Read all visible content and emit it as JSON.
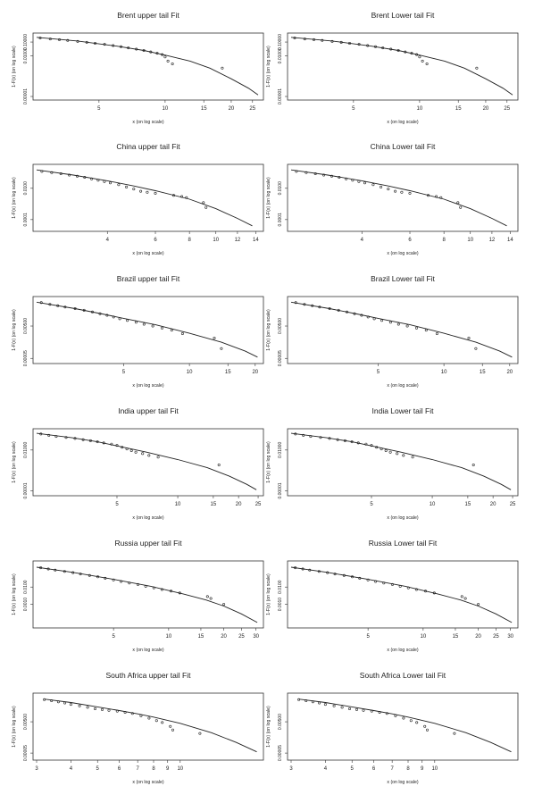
{
  "chart_data": [
    {
      "type": "scatter",
      "title": "Brent upper tail Fit",
      "xlabel": "x (on log scale)",
      "ylabel": "1-F(x) (on log scale)",
      "x_log": true,
      "y_log": true,
      "xlim": [
        2.6,
        27
      ],
      "ylim": [
        1e-05,
        0.25
      ],
      "xticks": [
        5,
        10,
        15,
        20,
        25
      ],
      "yticks": [
        0.1,
        0.01,
        1e-05
      ],
      "ytick_labels": [
        "0.10000",
        "0.01000",
        "0.00001"
      ],
      "points_x": [
        2.7,
        3.0,
        3.3,
        3.6,
        4.0,
        4.4,
        4.8,
        5.3,
        5.8,
        6.3,
        6.8,
        7.4,
        8.0,
        8.6,
        9.2,
        9.7,
        10.0,
        10.3,
        10.8,
        18.2
      ],
      "points_y": [
        0.2,
        0.17,
        0.15,
        0.13,
        0.11,
        0.095,
        0.08,
        0.068,
        0.055,
        0.045,
        0.037,
        0.03,
        0.024,
        0.019,
        0.015,
        0.012,
        0.008,
        0.004,
        0.0025,
        0.0012
      ],
      "curve_x": [
        2.6,
        4,
        6,
        8,
        10,
        13,
        16,
        20,
        24,
        26.5
      ],
      "curve_y": [
        0.22,
        0.12,
        0.05,
        0.024,
        0.011,
        0.004,
        0.0012,
        0.0002,
        4e-05,
        1.3e-05
      ]
    },
    {
      "type": "scatter",
      "title": "Brent Lower tail Fit",
      "xlabel": "x (on log scale)",
      "ylabel": "1-F(x) (on log scale)",
      "x_log": true,
      "y_log": true,
      "xlim": [
        2.6,
        27
      ],
      "ylim": [
        1e-05,
        0.25
      ],
      "xticks": [
        5,
        10,
        15,
        20,
        25
      ],
      "yticks": [
        0.1,
        0.01,
        1e-05
      ],
      "ytick_labels": [
        "0.10000",
        "0.01000",
        "0.00001"
      ],
      "points_x": [
        2.7,
        3.0,
        3.3,
        3.6,
        4.0,
        4.4,
        4.8,
        5.3,
        5.8,
        6.3,
        6.8,
        7.4,
        8.0,
        8.6,
        9.2,
        9.7,
        10.0,
        10.3,
        10.8,
        18.2
      ],
      "points_y": [
        0.2,
        0.17,
        0.15,
        0.13,
        0.11,
        0.095,
        0.08,
        0.068,
        0.055,
        0.045,
        0.037,
        0.03,
        0.024,
        0.019,
        0.015,
        0.012,
        0.008,
        0.004,
        0.0025,
        0.0012
      ],
      "curve_x": [
        2.6,
        4,
        6,
        8,
        10,
        13,
        16,
        20,
        24,
        26.5
      ],
      "curve_y": [
        0.22,
        0.12,
        0.05,
        0.024,
        0.011,
        0.004,
        0.0012,
        0.0002,
        4e-05,
        1.3e-05
      ]
    },
    {
      "type": "scatter",
      "title": "China upper tail Fit",
      "xlabel": "x (on log scale)",
      "ylabel": "1-F(x) (on log scale)",
      "x_log": true,
      "y_log": true,
      "xlim": [
        2.2,
        14.5
      ],
      "ylim": [
        3e-05,
        0.2
      ],
      "xticks": [
        4,
        6,
        8,
        10,
        12,
        14
      ],
      "yticks": [
        0.01,
        0.0001
      ],
      "ytick_labels": [
        "0.0100",
        "0.0001"
      ],
      "points_x": [
        2.3,
        2.5,
        2.7,
        2.9,
        3.1,
        3.3,
        3.5,
        3.7,
        3.9,
        4.1,
        4.4,
        4.7,
        5.0,
        5.3,
        5.6,
        6.0,
        7.0,
        7.5,
        7.8,
        9.0,
        9.2
      ],
      "points_y": [
        0.12,
        0.1,
        0.085,
        0.07,
        0.06,
        0.05,
        0.04,
        0.033,
        0.027,
        0.022,
        0.017,
        0.012,
        0.009,
        0.0065,
        0.0055,
        0.0048,
        0.0035,
        0.003,
        0.0025,
        0.0012,
        0.0006
      ],
      "curve_x": [
        2.2,
        3,
        4,
        5,
        6,
        8,
        10,
        12,
        13.6
      ],
      "curve_y": [
        0.15,
        0.07,
        0.03,
        0.014,
        0.007,
        0.002,
        0.0005,
        0.00012,
        4e-05
      ]
    },
    {
      "type": "scatter",
      "title": "China Lower tail Fit",
      "xlabel": "x (on log scale)",
      "ylabel": "1-F(x) (on log scale)",
      "x_log": true,
      "y_log": true,
      "xlim": [
        2.2,
        14.5
      ],
      "ylim": [
        3e-05,
        0.2
      ],
      "xticks": [
        4,
        6,
        8,
        10,
        12,
        14
      ],
      "yticks": [
        0.01,
        0.0001
      ],
      "ytick_labels": [
        "0.0100",
        "0.0001"
      ],
      "points_x": [
        2.3,
        2.5,
        2.7,
        2.9,
        3.1,
        3.3,
        3.5,
        3.7,
        3.9,
        4.1,
        4.4,
        4.7,
        5.0,
        5.3,
        5.6,
        6.0,
        7.0,
        7.5,
        7.8,
        9.0,
        9.2
      ],
      "points_y": [
        0.12,
        0.1,
        0.085,
        0.07,
        0.06,
        0.05,
        0.04,
        0.033,
        0.027,
        0.022,
        0.017,
        0.012,
        0.009,
        0.0065,
        0.0055,
        0.0048,
        0.0035,
        0.003,
        0.0025,
        0.0012,
        0.0006
      ],
      "curve_x": [
        2.2,
        3,
        4,
        5,
        6,
        8,
        10,
        12,
        13.6
      ],
      "curve_y": [
        0.15,
        0.07,
        0.03,
        0.014,
        0.007,
        0.002,
        0.0005,
        0.00012,
        4e-05
      ]
    },
    {
      "type": "scatter",
      "title": "Brazil upper tail Fit",
      "xlabel": "x (on log scale)",
      "ylabel": "1-F(x) (on log scale)",
      "x_log": true,
      "y_log": true,
      "xlim": [
        2.0,
        21
      ],
      "ylim": [
        4e-05,
        0.2
      ],
      "xticks": [
        5,
        10,
        15,
        20
      ],
      "yticks": [
        0.005,
        5e-05
      ],
      "ytick_labels": [
        "0.00500",
        "0.00005"
      ],
      "points_x": [
        2.1,
        2.3,
        2.5,
        2.7,
        3.0,
        3.3,
        3.6,
        3.9,
        4.2,
        4.5,
        4.8,
        5.2,
        5.7,
        6.2,
        6.8,
        7.5,
        8.3,
        9.3,
        13.0,
        14.0
      ],
      "points_y": [
        0.14,
        0.11,
        0.09,
        0.075,
        0.06,
        0.047,
        0.037,
        0.029,
        0.023,
        0.018,
        0.014,
        0.011,
        0.0085,
        0.0065,
        0.005,
        0.0038,
        0.0028,
        0.0017,
        0.0009,
        0.0002
      ],
      "curve_x": [
        2.0,
        3,
        4,
        5,
        7,
        10,
        14,
        18,
        20.5
      ],
      "curve_y": [
        0.15,
        0.06,
        0.028,
        0.015,
        0.006,
        0.0018,
        0.0005,
        0.00014,
        6e-05
      ]
    },
    {
      "type": "scatter",
      "title": "Brazil Lower tail Fit",
      "xlabel": "x (on log scale)",
      "ylabel": "1-F(x) (on log scale)",
      "x_log": true,
      "y_log": true,
      "xlim": [
        2.0,
        21
      ],
      "ylim": [
        4e-05,
        0.2
      ],
      "xticks": [
        5,
        10,
        15,
        20
      ],
      "yticks": [
        0.005,
        5e-05
      ],
      "ytick_labels": [
        "0.00500",
        "0.00005"
      ],
      "points_x": [
        2.1,
        2.3,
        2.5,
        2.7,
        3.0,
        3.3,
        3.6,
        3.9,
        4.2,
        4.5,
        4.8,
        5.2,
        5.7,
        6.2,
        6.8,
        7.5,
        8.3,
        9.3,
        13.0,
        14.0
      ],
      "points_y": [
        0.14,
        0.11,
        0.09,
        0.075,
        0.06,
        0.047,
        0.037,
        0.029,
        0.023,
        0.018,
        0.014,
        0.011,
        0.0085,
        0.0065,
        0.005,
        0.0038,
        0.0028,
        0.0017,
        0.0009,
        0.0002
      ],
      "curve_x": [
        2.0,
        3,
        4,
        5,
        7,
        10,
        14,
        18,
        20.5
      ],
      "curve_y": [
        0.15,
        0.06,
        0.028,
        0.015,
        0.006,
        0.0018,
        0.0005,
        0.00014,
        6e-05
      ]
    },
    {
      "type": "scatter",
      "title": "India upper tail Fit",
      "xlabel": "x (on log scale)",
      "ylabel": "1-F(x) (on log scale)",
      "x_log": true,
      "y_log": true,
      "xlim": [
        2.0,
        25.5
      ],
      "ylim": [
        8e-06,
        0.2
      ],
      "xticks": [
        5,
        10,
        15,
        20,
        25
      ],
      "yticks": [
        0.01,
        1e-05
      ],
      "ytick_labels": [
        "0.01000",
        "0.00001"
      ],
      "points_x": [
        2.1,
        2.3,
        2.5,
        2.8,
        3.1,
        3.4,
        3.7,
        4.0,
        4.3,
        4.7,
        5.0,
        5.3,
        5.6,
        5.9,
        6.2,
        6.7,
        7.2,
        8.0,
        16.0
      ],
      "points_y": [
        0.15,
        0.12,
        0.1,
        0.085,
        0.07,
        0.058,
        0.048,
        0.04,
        0.033,
        0.027,
        0.022,
        0.016,
        0.012,
        0.009,
        0.007,
        0.0055,
        0.004,
        0.003,
        0.0008
      ],
      "curve_x": [
        2.0,
        3,
        4,
        5,
        7,
        10,
        14,
        18,
        22,
        24.5
      ],
      "curve_y": [
        0.17,
        0.08,
        0.04,
        0.02,
        0.007,
        0.002,
        0.0005,
        0.00012,
        3e-05,
        1.2e-05
      ]
    },
    {
      "type": "scatter",
      "title": "India Lower tail Fit",
      "xlabel": "x (on log scale)",
      "ylabel": "1-F(x) (on log scale)",
      "x_log": true,
      "y_log": true,
      "xlim": [
        2.0,
        25.5
      ],
      "ylim": [
        8e-06,
        0.2
      ],
      "xticks": [
        5,
        10,
        15,
        20,
        25
      ],
      "yticks": [
        0.01,
        1e-05
      ],
      "ytick_labels": [
        "0.01000",
        "0.00001"
      ],
      "points_x": [
        2.1,
        2.3,
        2.5,
        2.8,
        3.1,
        3.4,
        3.7,
        4.0,
        4.3,
        4.7,
        5.0,
        5.3,
        5.6,
        5.9,
        6.2,
        6.7,
        7.2,
        8.0,
        16.0
      ],
      "points_y": [
        0.15,
        0.12,
        0.1,
        0.085,
        0.07,
        0.058,
        0.048,
        0.04,
        0.033,
        0.027,
        0.022,
        0.016,
        0.012,
        0.009,
        0.007,
        0.0055,
        0.004,
        0.003,
        0.0008
      ],
      "curve_x": [
        2.0,
        3,
        4,
        5,
        7,
        10,
        14,
        18,
        22,
        24.5
      ],
      "curve_y": [
        0.17,
        0.08,
        0.04,
        0.02,
        0.007,
        0.002,
        0.0005,
        0.00012,
        3e-05,
        1.2e-05
      ]
    },
    {
      "type": "scatter",
      "title": "Russia upper tail Fit",
      "xlabel": "x (on log scale)",
      "ylabel": "1-F(x) (on log scale)",
      "x_log": true,
      "y_log": true,
      "xlim": [
        1.9,
        31.5
      ],
      "ylim": [
        7e-05,
        0.2
      ],
      "xticks": [
        5,
        10,
        15,
        20,
        25,
        30
      ],
      "yticks": [
        0.01,
        0.001
      ],
      "ytick_labels": [
        "0.0100",
        "0.0010"
      ],
      "points_x": [
        2.0,
        2.2,
        2.4,
        2.7,
        3.0,
        3.3,
        3.7,
        4.1,
        4.5,
        5.0,
        5.5,
        6.1,
        6.8,
        7.5,
        8.3,
        9.2,
        10.3,
        11.5,
        16.3,
        17.0,
        20.0
      ],
      "points_y": [
        0.13,
        0.11,
        0.095,
        0.08,
        0.068,
        0.057,
        0.047,
        0.039,
        0.032,
        0.026,
        0.021,
        0.017,
        0.014,
        0.011,
        0.009,
        0.0072,
        0.0058,
        0.0045,
        0.0028,
        0.0022,
        0.001
      ],
      "curve_x": [
        1.9,
        3,
        5,
        8,
        12,
        16,
        20,
        25,
        30.5
      ],
      "curve_y": [
        0.14,
        0.07,
        0.028,
        0.011,
        0.004,
        0.0018,
        0.0008,
        0.00028,
        9e-05
      ]
    },
    {
      "type": "scatter",
      "title": "Russia Lower tail Fit",
      "xlabel": "x (on log scale)",
      "ylabel": "1-F(x) (on log scale)",
      "x_log": true,
      "y_log": true,
      "xlim": [
        1.9,
        31.5
      ],
      "ylim": [
        7e-05,
        0.2
      ],
      "xticks": [
        5,
        10,
        15,
        20,
        25,
        30
      ],
      "yticks": [
        0.01,
        0.001
      ],
      "ytick_labels": [
        "0.0100",
        "0.0010"
      ],
      "points_x": [
        2.0,
        2.2,
        2.4,
        2.7,
        3.0,
        3.3,
        3.7,
        4.1,
        4.5,
        5.0,
        5.5,
        6.1,
        6.8,
        7.5,
        8.3,
        9.2,
        10.3,
        11.5,
        16.3,
        17.0,
        20.0
      ],
      "points_y": [
        0.13,
        0.11,
        0.095,
        0.08,
        0.068,
        0.057,
        0.047,
        0.039,
        0.032,
        0.026,
        0.021,
        0.017,
        0.014,
        0.011,
        0.009,
        0.0072,
        0.0058,
        0.0045,
        0.0028,
        0.0022,
        0.001
      ],
      "curve_x": [
        1.9,
        3,
        5,
        8,
        12,
        16,
        20,
        25,
        30.5
      ],
      "curve_y": [
        0.14,
        0.07,
        0.028,
        0.011,
        0.004,
        0.0018,
        0.0008,
        0.00028,
        9e-05
      ]
    },
    {
      "type": "scatter",
      "title": "South Africa upper tail Fit",
      "xlabel": "x (on log scale)",
      "ylabel": "1-F(x) (on log scale)",
      "x_log": true,
      "y_log": true,
      "xlim": [
        3,
        19.5
      ],
      "ylim": [
        3e-05,
        0.2
      ],
      "xticks": [
        3,
        4,
        5,
        6,
        7,
        8,
        9,
        10
      ],
      "yticks": [
        0.005,
        5e-05
      ],
      "ytick_labels": [
        "0.00500",
        "0.00005"
      ],
      "points_x": [
        3.2,
        3.4,
        3.6,
        3.8,
        4.0,
        4.3,
        4.6,
        4.9,
        5.2,
        5.5,
        5.9,
        6.3,
        6.7,
        7.2,
        7.7,
        8.2,
        8.6,
        9.2,
        9.4,
        11.8
      ],
      "points_y": [
        0.13,
        0.11,
        0.095,
        0.08,
        0.065,
        0.052,
        0.042,
        0.034,
        0.03,
        0.027,
        0.024,
        0.02,
        0.017,
        0.012,
        0.0085,
        0.006,
        0.0045,
        0.0025,
        0.0015,
        0.0009
      ],
      "curve_x": [
        3.2,
        4,
        5,
        6,
        7,
        8,
        10,
        13,
        16,
        19
      ],
      "curve_y": [
        0.14,
        0.085,
        0.045,
        0.026,
        0.016,
        0.01,
        0.004,
        0.001,
        0.00024,
        6e-05
      ]
    },
    {
      "type": "scatter",
      "title": "South Africa Lower tail Fit",
      "xlabel": "x (on log scale)",
      "ylabel": "1-F(x) (on log scale)",
      "x_log": true,
      "y_log": true,
      "xlim": [
        3,
        19.5
      ],
      "ylim": [
        3e-05,
        0.2
      ],
      "xticks": [
        3,
        4,
        5,
        6,
        7,
        8,
        9,
        10
      ],
      "yticks": [
        0.005,
        5e-05
      ],
      "ytick_labels": [
        "0.00500",
        "0.00005"
      ],
      "points_x": [
        3.2,
        3.4,
        3.6,
        3.8,
        4.0,
        4.3,
        4.6,
        4.9,
        5.2,
        5.5,
        5.9,
        6.3,
        6.7,
        7.2,
        7.7,
        8.2,
        8.6,
        9.2,
        9.4,
        11.8
      ],
      "points_y": [
        0.13,
        0.11,
        0.095,
        0.08,
        0.065,
        0.052,
        0.042,
        0.034,
        0.03,
        0.027,
        0.024,
        0.02,
        0.017,
        0.012,
        0.0085,
        0.006,
        0.0045,
        0.0025,
        0.0015,
        0.0009
      ],
      "curve_x": [
        3.2,
        4,
        5,
        6,
        7,
        8,
        10,
        13,
        16,
        19
      ],
      "curve_y": [
        0.14,
        0.085,
        0.045,
        0.026,
        0.016,
        0.01,
        0.004,
        0.001,
        0.00024,
        6e-05
      ]
    }
  ]
}
